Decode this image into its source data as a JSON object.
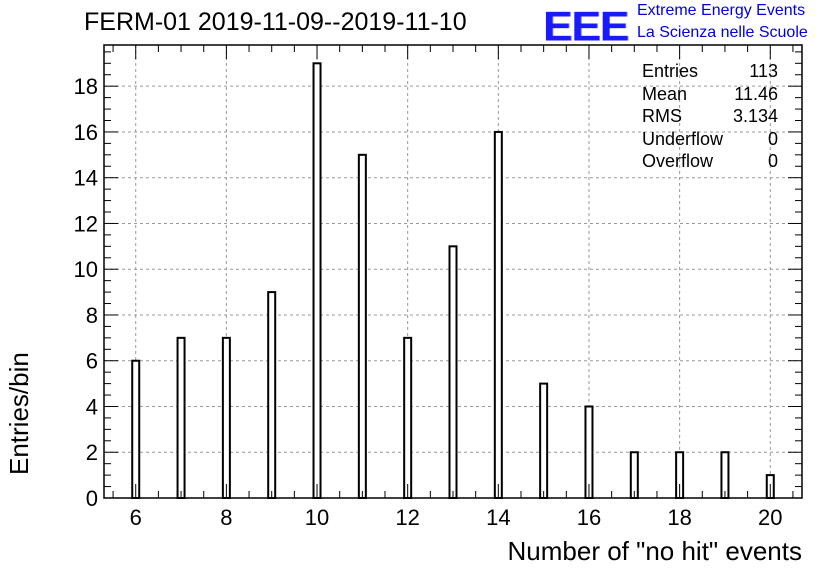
{
  "header": {
    "title": "FERM-01 2019-11-09--2019-11-10",
    "logo_text": "EEE",
    "logo_line1": "Extreme Energy Events",
    "logo_line2": "La Scienza nelle Scuole",
    "logo_color": "#1a1aff"
  },
  "stats_box": {
    "rows": [
      {
        "label": "Entries",
        "value": "113"
      },
      {
        "label": "Mean",
        "value": "11.46"
      },
      {
        "label": "RMS",
        "value": "3.134"
      },
      {
        "label": "Underflow",
        "value": "0"
      },
      {
        "label": "Overflow",
        "value": "0"
      }
    ]
  },
  "chart_data": {
    "type": "bar",
    "title": "FERM-01 2019-11-09--2019-11-10",
    "xlabel": "Number of \"no hit\" events",
    "ylabel": "Entries/bin",
    "x": [
      6,
      7,
      8,
      9,
      10,
      11,
      12,
      13,
      14,
      15,
      16,
      17,
      18,
      19,
      20
    ],
    "values": [
      6,
      7,
      7,
      9,
      19,
      15,
      7,
      11,
      16,
      5,
      4,
      2,
      2,
      2,
      1
    ],
    "xlim": [
      5.3,
      20.7
    ],
    "ylim": [
      0,
      19.8
    ],
    "xticks": [
      6,
      8,
      10,
      12,
      14,
      16,
      18,
      20
    ],
    "yticks": [
      0,
      2,
      4,
      6,
      8,
      10,
      12,
      14,
      16,
      18
    ],
    "grid": true,
    "bar_fill": "#ffffff",
    "bar_edge": "#000000"
  }
}
